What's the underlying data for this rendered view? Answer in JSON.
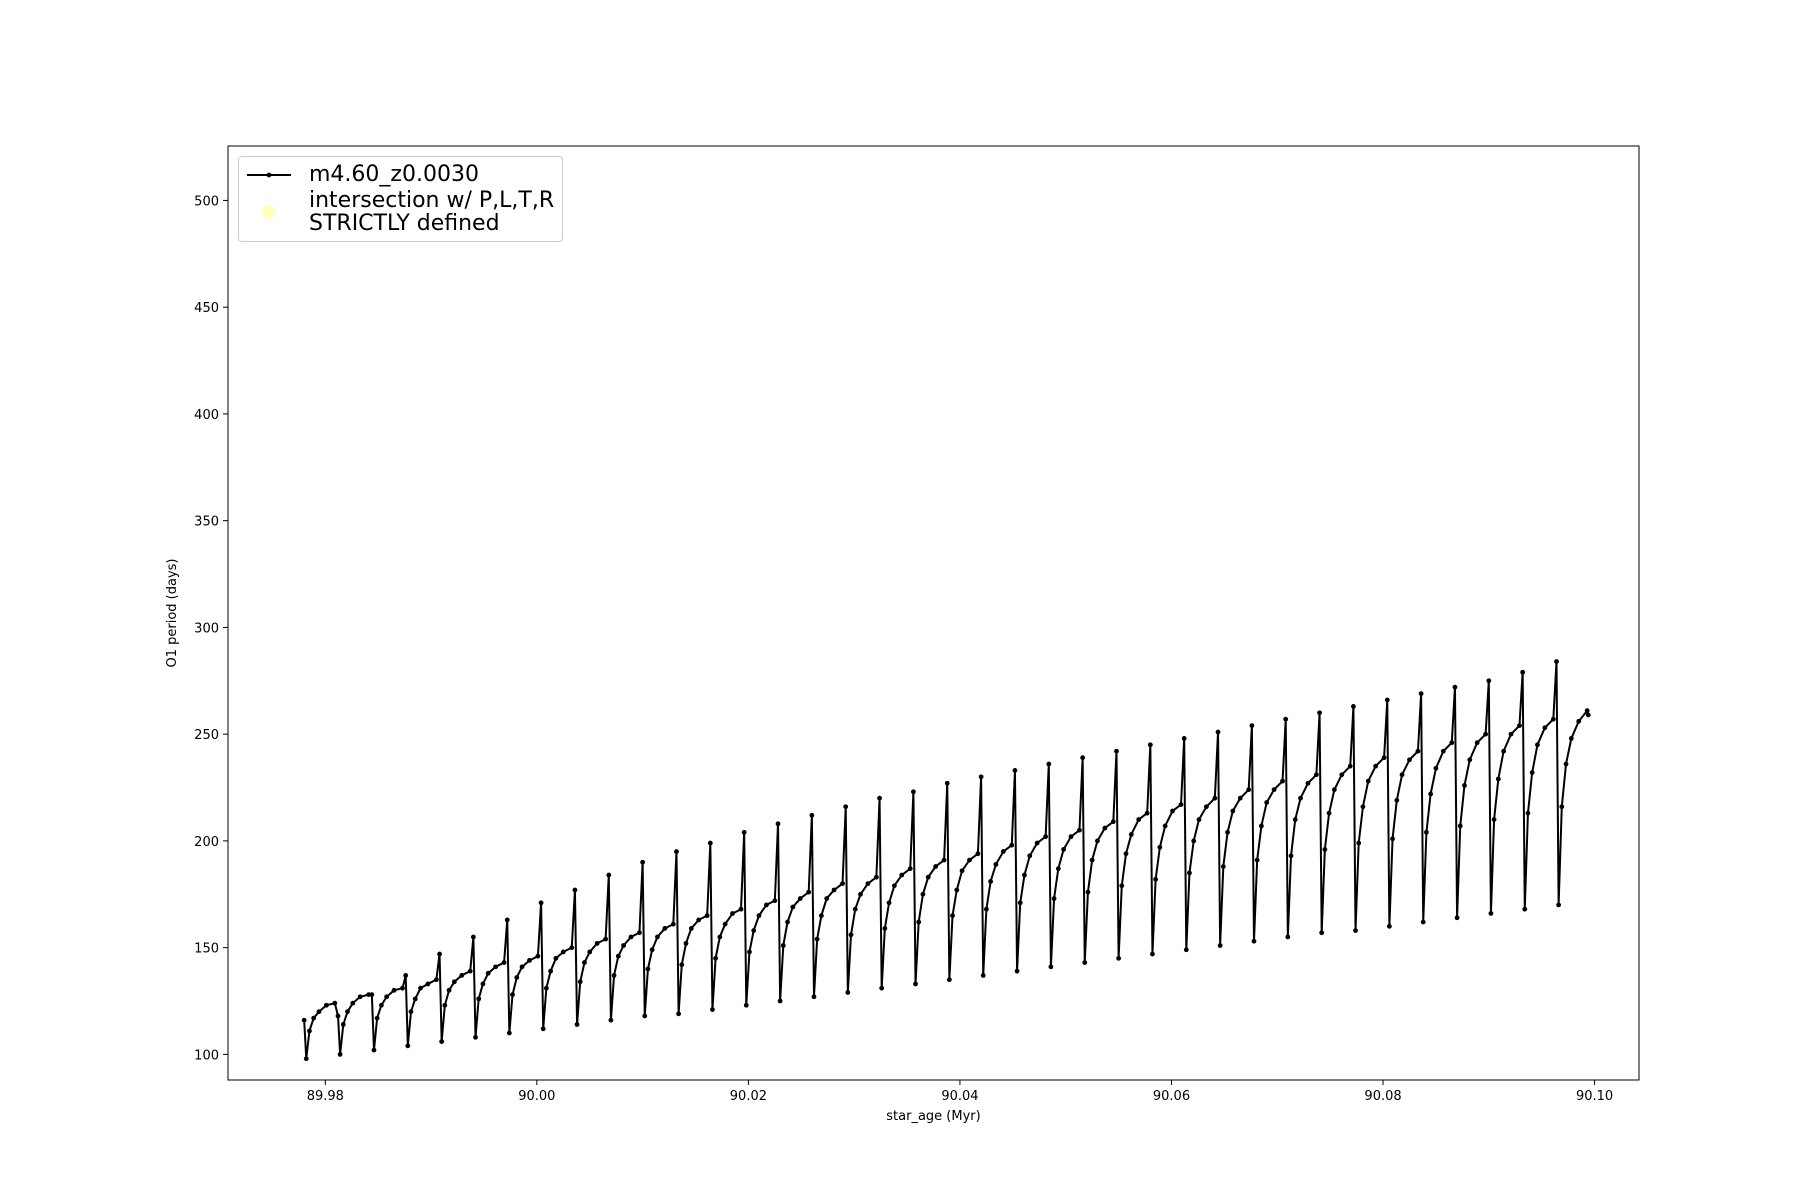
{
  "chart_data": {
    "type": "line",
    "xlabel": "star_age (Myr)",
    "ylabel": "O1 period (days)",
    "xlim": [
      89.9708,
      90.1042
    ],
    "ylim": [
      88.0,
      525.5
    ],
    "xticks": [
      89.98,
      {
        "value": 90,
        "label": "90.00"
      },
      90.02,
      90.04,
      90.06,
      90.08,
      {
        "value": 90.1,
        "label": "90.10"
      }
    ],
    "yticks": [
      100,
      150,
      200,
      250,
      300,
      350,
      400,
      450,
      500
    ],
    "grid": false,
    "legend": "upper left",
    "x": [
      89.978,
      89.9782,
      89.9785,
      89.9789,
      89.9794,
      89.9801,
      89.9809,
      89.9812,
      89.9814,
      89.9817,
      89.9821,
      89.9826,
      89.9833,
      89.9841,
      89.9844,
      89.9846,
      89.9849,
      89.9853,
      89.9858,
      89.9865,
      89.9873,
      89.9876,
      89.9878,
      89.9881,
      89.9885,
      89.989,
      89.9897,
      89.9905,
      89.9908,
      89.991,
      89.9913,
      89.9917,
      89.9922,
      89.9929,
      89.9937,
      89.994,
      89.9942,
      89.9945,
      89.9949,
      89.9954,
      89.9961,
      89.9969,
      89.9972,
      89.9974,
      89.9977,
      89.9981,
      89.9986,
      89.9993,
      90.0001,
      90.0004,
      90.0006,
      90.0009,
      90.0013,
      90.0018,
      90.0025,
      90.0033,
      90.0036,
      90.0038,
      90.0041,
      90.0045,
      90.005,
      90.0057,
      90.0065,
      90.0068,
      90.007,
      90.0073,
      90.0077,
      90.0082,
      90.0089,
      90.0097,
      90.01,
      90.0102,
      90.0105,
      90.0109,
      90.0114,
      90.0121,
      90.0129,
      90.0132,
      90.0134,
      90.0137,
      90.0141,
      90.0146,
      90.0153,
      90.0161,
      90.0164,
      90.0166,
      90.0169,
      90.0173,
      90.0178,
      90.0185,
      90.0193,
      90.0196,
      90.0198,
      90.0201,
      90.0205,
      90.021,
      90.0217,
      90.0225,
      90.0228,
      90.023,
      90.0233,
      90.0237,
      90.0242,
      90.0249,
      90.0257,
      90.026,
      90.0262,
      90.0265,
      90.0269,
      90.0274,
      90.0281,
      90.0289,
      90.0292,
      90.0294,
      90.0297,
      90.0301,
      90.0306,
      90.0313,
      90.0321,
      90.0324,
      90.0326,
      90.0329,
      90.0333,
      90.0338,
      90.0345,
      90.0353,
      90.0356,
      90.0358,
      90.0361,
      90.0365,
      90.037,
      90.0377,
      90.0385,
      90.0388,
      90.039,
      90.0393,
      90.0397,
      90.0402,
      90.0409,
      90.0417,
      90.042,
      90.0422,
      90.0425,
      90.0429,
      90.0434,
      90.0441,
      90.0449,
      90.0452,
      90.0454,
      90.0457,
      90.0461,
      90.0466,
      90.0473,
      90.0481,
      90.0484,
      90.0486,
      90.0489,
      90.0493,
      90.0498,
      90.0505,
      90.0513,
      90.0516,
      90.0518,
      90.0521,
      90.0525,
      90.053,
      90.0537,
      90.0545,
      90.0548,
      90.055,
      90.0553,
      90.0557,
      90.0562,
      90.0569,
      90.0577,
      90.058,
      90.0582,
      90.0585,
      90.0589,
      90.0594,
      90.0601,
      90.0609,
      90.0612,
      90.0614,
      90.0617,
      90.0621,
      90.0626,
      90.0633,
      90.0641,
      90.0644,
      90.0646,
      90.0649,
      90.0653,
      90.0658,
      90.0665,
      90.0673,
      90.0676,
      90.0678,
      90.0681,
      90.0685,
      90.069,
      90.0697,
      90.0705,
      90.0708,
      90.071,
      90.0713,
      90.0717,
      90.0722,
      90.0729,
      90.0737,
      90.074,
      90.0742,
      90.0745,
      90.0749,
      90.0754,
      90.0761,
      90.0769,
      90.0772,
      90.0774,
      90.0777,
      90.0781,
      90.0786,
      90.0793,
      90.0801,
      90.0804,
      90.0806,
      90.0809,
      90.0813,
      90.0818,
      90.0825,
      90.0833,
      90.0836,
      90.0838,
      90.0841,
      90.0845,
      90.085,
      90.0857,
      90.0865,
      90.0868,
      90.087,
      90.0873,
      90.0877,
      90.0882,
      90.0889,
      90.0897,
      90.09,
      90.0902,
      90.0905,
      90.0909,
      90.0914,
      90.0921,
      90.0929,
      90.0932,
      90.0934,
      90.0937,
      90.0941,
      90.0946,
      90.0953,
      90.0961,
      90.0964,
      90.0966,
      90.0969,
      90.0973,
      90.0978,
      90.0985,
      90.0993,
      90.0994
    ],
    "series": [
      {
        "name": "m4.60_z0.0030",
        "color": "#000000",
        "values": [
          116,
          98,
          111,
          117,
          120,
          123,
          124,
          118,
          100,
          114,
          120,
          124,
          127,
          128,
          128,
          102,
          117,
          123,
          127,
          130,
          131,
          137,
          104,
          120,
          126,
          131,
          133,
          135,
          147,
          106,
          123,
          130,
          134,
          137,
          139,
          155,
          108,
          126,
          133,
          138,
          141,
          143,
          163,
          110,
          128,
          136,
          141,
          144,
          146,
          171,
          112,
          131,
          139,
          145,
          148,
          150,
          177,
          114,
          134,
          143,
          148,
          152,
          154,
          184,
          116,
          137,
          146,
          151,
          155,
          157,
          190,
          118,
          140,
          149,
          155,
          159,
          161,
          195,
          119,
          142,
          152,
          159,
          163,
          165,
          199,
          121,
          145,
          155,
          161,
          166,
          168,
          204,
          123,
          148,
          158,
          165,
          170,
          172,
          208,
          125,
          151,
          162,
          169,
          173,
          176,
          212,
          127,
          154,
          165,
          173,
          177,
          180,
          216,
          129,
          156,
          168,
          175,
          180,
          183,
          220,
          131,
          159,
          171,
          179,
          184,
          187,
          223,
          133,
          162,
          175,
          183,
          188,
          191,
          227,
          135,
          165,
          177,
          186,
          191,
          194,
          230,
          137,
          168,
          181,
          189,
          195,
          198,
          233,
          139,
          171,
          184,
          193,
          199,
          202,
          236,
          141,
          173,
          187,
          196,
          202,
          205,
          239,
          143,
          176,
          191,
          200,
          206,
          209,
          242,
          145,
          179,
          194,
          203,
          210,
          213,
          245,
          147,
          182,
          197,
          207,
          214,
          217,
          248,
          149,
          185,
          200,
          210,
          216,
          220,
          251,
          151,
          188,
          204,
          214,
          220,
          224,
          254,
          153,
          191,
          207,
          218,
          224,
          228,
          257,
          155,
          193,
          210,
          220,
          227,
          231,
          260,
          157,
          196,
          213,
          224,
          231,
          235,
          263,
          158,
          199,
          216,
          228,
          235,
          239,
          266,
          160,
          201,
          219,
          231,
          238,
          242,
          269,
          162,
          204,
          222,
          234,
          242,
          246,
          272,
          164,
          207,
          226,
          238,
          246,
          250,
          275,
          166,
          210,
          229,
          242,
          250,
          254,
          279,
          168,
          213,
          232,
          245,
          253,
          257,
          284,
          170,
          216,
          236,
          248,
          256,
          261,
          259
        ]
      },
      {
        "name": "intersection w/ P,L,T,R\nSTRICTLY defined",
        "type": "scatter",
        "color": "#ffffc0",
        "x": [],
        "values": []
      }
    ]
  }
}
